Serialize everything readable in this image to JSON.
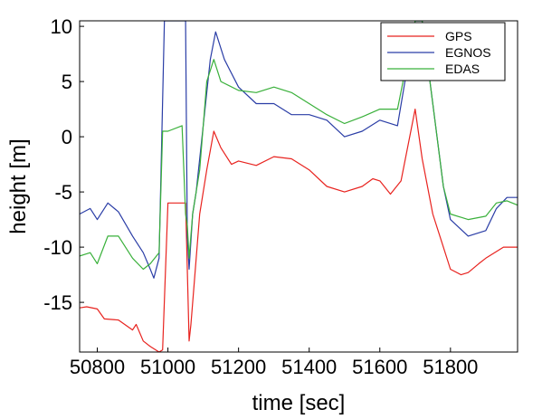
{
  "chart_data": {
    "type": "line",
    "title": "",
    "xlabel": "time [sec]",
    "ylabel": "height [m]",
    "xlim": [
      50750,
      51990
    ],
    "ylim": [
      -19.5,
      10.5
    ],
    "xticks": [
      50800,
      51000,
      51200,
      51400,
      51600,
      51800
    ],
    "yticks": [
      10,
      5,
      0,
      -5,
      -10,
      -15
    ],
    "grid": false,
    "legend_position": "top-right",
    "series": [
      {
        "name": "GPS",
        "color": "#e8231f",
        "x": [
          50750,
          50770,
          50800,
          50820,
          50860,
          50900,
          50910,
          50930,
          50950,
          50975,
          50985,
          51000,
          51050,
          51055,
          51060,
          51065,
          51075,
          51090,
          51110,
          51130,
          51150,
          51180,
          51200,
          51250,
          51300,
          51350,
          51400,
          51450,
          51500,
          51550,
          51580,
          51600,
          51630,
          51660,
          51700,
          51720,
          51750,
          51780,
          51800,
          51830,
          51850,
          51880,
          51900,
          51950,
          51990
        ],
        "y": [
          -15.5,
          -15.4,
          -15.6,
          -16.5,
          -16.6,
          -17.5,
          -17,
          -18.5,
          -19,
          -19.5,
          -19.3,
          -6,
          -6,
          -12,
          -18.5,
          -17,
          -13,
          -7,
          -3,
          0.5,
          -1,
          -2.5,
          -2.2,
          -2.6,
          -1.8,
          -2,
          -3,
          -4.5,
          -5,
          -4.5,
          -3.8,
          -4,
          -5.2,
          -4,
          2.5,
          -2,
          -7,
          -10,
          -12,
          -12.5,
          -12.3,
          -11.5,
          -11,
          -10,
          -10
        ]
      },
      {
        "name": "EGNOS",
        "color": "#2a3da6",
        "x": [
          50750,
          50780,
          50800,
          50830,
          50860,
          50900,
          50930,
          50950,
          50960,
          50975,
          50990,
          51010,
          51030,
          51050,
          51055,
          51060,
          51070,
          51080,
          51100,
          51120,
          51135,
          51160,
          51200,
          51250,
          51300,
          51350,
          51400,
          51450,
          51500,
          51550,
          51600,
          51650,
          51700,
          51720,
          51750,
          51780,
          51800,
          51850,
          51900,
          51930,
          51960,
          51990
        ],
        "y": [
          -7,
          -6.5,
          -7.5,
          -6,
          -6.8,
          -9,
          -10.5,
          -12,
          -12.8,
          -11,
          10.5,
          10.5,
          10.5,
          10.5,
          -9,
          -12,
          -7,
          -5,
          1,
          7,
          9.5,
          7,
          4.5,
          3,
          3,
          2,
          2,
          1.5,
          0,
          0.5,
          1.5,
          1,
          10.5,
          10.5,
          3,
          -4.5,
          -7.5,
          -9,
          -8.5,
          -6.5,
          -5.5,
          -5.5
        ]
      },
      {
        "name": "EDAS",
        "color": "#39b03a",
        "x": [
          50750,
          50780,
          50800,
          50830,
          50860,
          50900,
          50930,
          50950,
          50975,
          50985,
          51000,
          51040,
          51050,
          51055,
          51060,
          51070,
          51090,
          51110,
          51130,
          51150,
          51200,
          51250,
          51300,
          51350,
          51400,
          51450,
          51500,
          51550,
          51600,
          51650,
          51700,
          51720,
          51750,
          51780,
          51800,
          51850,
          51900,
          51930,
          51960,
          51990
        ],
        "y": [
          -10.8,
          -10.5,
          -11.5,
          -9,
          -9,
          -11,
          -12,
          -11.5,
          -10.5,
          0.5,
          0.5,
          1,
          -7,
          -8,
          -11,
          -7,
          -3,
          5,
          7,
          5,
          4.2,
          4,
          4.5,
          4,
          3,
          2,
          1.2,
          1.8,
          2.5,
          2.5,
          10.5,
          10.5,
          3,
          -4.5,
          -7,
          -7.5,
          -7.2,
          -6,
          -5.8,
          -6.2
        ]
      }
    ]
  }
}
